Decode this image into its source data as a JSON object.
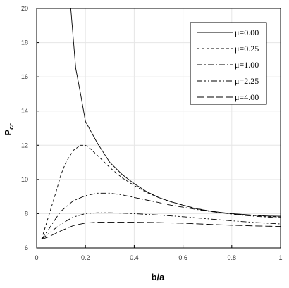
{
  "chart_data": {
    "type": "line",
    "xlabel": "b/a",
    "ylabel_main": "P",
    "ylabel_sub": "cr",
    "xlim": [
      0,
      1
    ],
    "ylim": [
      6,
      20
    ],
    "x_ticks": [
      0,
      0.2,
      0.4,
      0.6,
      0.8,
      1
    ],
    "x_tick_labels": [
      "0",
      "0.2",
      "0.4",
      "0.6",
      "0.8",
      "1"
    ],
    "y_ticks": [
      6,
      8,
      10,
      12,
      14,
      16,
      18,
      20
    ],
    "y_tick_labels": [
      "6",
      "8",
      "10",
      "12",
      "14",
      "16",
      "18",
      "20"
    ],
    "legend_position": "top-right",
    "series": [
      {
        "name": "μ=0.00",
        "style": "solid",
        "x": [
          0.14,
          0.16,
          0.18,
          0.2,
          0.25,
          0.3,
          0.35,
          0.4,
          0.45,
          0.5,
          0.55,
          0.6,
          0.65,
          0.7,
          0.75,
          0.8,
          0.85,
          0.9,
          0.95,
          1.0
        ],
        "y": [
          20.0,
          16.5,
          15.0,
          13.4,
          12.1,
          11.0,
          10.3,
          9.75,
          9.3,
          8.95,
          8.7,
          8.5,
          8.3,
          8.18,
          8.08,
          8.0,
          7.95,
          7.9,
          7.86,
          7.85
        ]
      },
      {
        "name": "μ=0.25",
        "style": "dash",
        "x": [
          0.02,
          0.05,
          0.08,
          0.1,
          0.12,
          0.15,
          0.18,
          0.2,
          0.22,
          0.25,
          0.3,
          0.35,
          0.4,
          0.45,
          0.5,
          0.55,
          0.6,
          0.65,
          0.7,
          0.75,
          0.8,
          0.85,
          0.9,
          0.95,
          1.0
        ],
        "y": [
          6.5,
          7.9,
          9.3,
          10.3,
          11.0,
          11.7,
          12.0,
          12.0,
          11.8,
          11.4,
          10.7,
          10.1,
          9.65,
          9.25,
          8.95,
          8.7,
          8.5,
          8.32,
          8.18,
          8.07,
          8.0,
          7.93,
          7.88,
          7.84,
          7.8
        ]
      },
      {
        "name": "μ=1.00",
        "style": "dashdot",
        "x": [
          0.02,
          0.05,
          0.08,
          0.1,
          0.15,
          0.2,
          0.25,
          0.3,
          0.35,
          0.4,
          0.45,
          0.5,
          0.55,
          0.6,
          0.65,
          0.7,
          0.75,
          0.8,
          0.85,
          0.9,
          0.95,
          1.0
        ],
        "y": [
          6.5,
          7.1,
          7.75,
          8.15,
          8.75,
          9.05,
          9.2,
          9.2,
          9.1,
          8.95,
          8.8,
          8.65,
          8.5,
          8.38,
          8.26,
          8.15,
          8.06,
          7.98,
          7.9,
          7.84,
          7.8,
          7.75
        ]
      },
      {
        "name": "μ=2.25",
        "style": "dashdotdot",
        "x": [
          0.02,
          0.05,
          0.1,
          0.15,
          0.2,
          0.25,
          0.3,
          0.4,
          0.5,
          0.6,
          0.7,
          0.8,
          0.9,
          1.0
        ],
        "y": [
          6.5,
          6.85,
          7.4,
          7.8,
          8.0,
          8.05,
          8.05,
          8.0,
          7.92,
          7.82,
          7.7,
          7.58,
          7.48,
          7.4
        ]
      },
      {
        "name": "μ=4.00",
        "style": "longdash",
        "x": [
          0.02,
          0.05,
          0.1,
          0.15,
          0.2,
          0.25,
          0.3,
          0.4,
          0.5,
          0.6,
          0.7,
          0.8,
          0.9,
          1.0
        ],
        "y": [
          6.5,
          6.65,
          7.0,
          7.3,
          7.45,
          7.5,
          7.5,
          7.5,
          7.48,
          7.44,
          7.38,
          7.32,
          7.28,
          7.25
        ]
      }
    ]
  }
}
